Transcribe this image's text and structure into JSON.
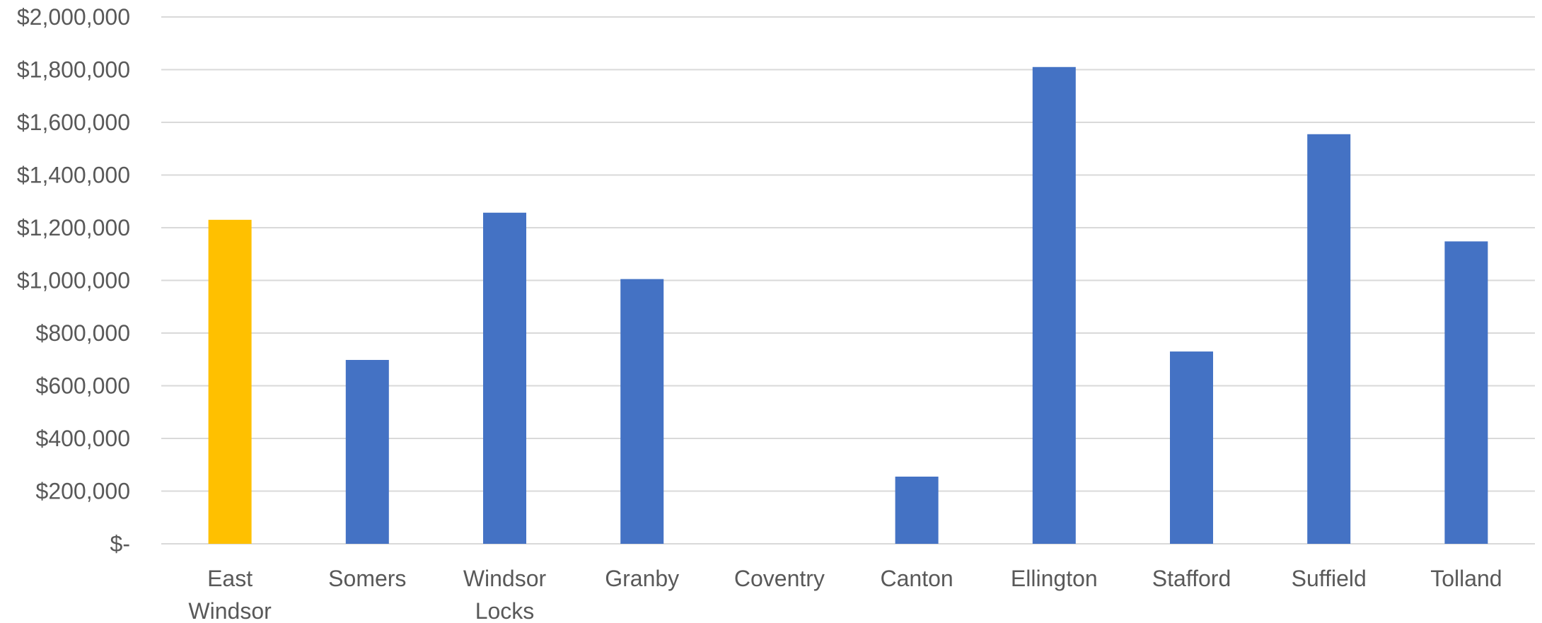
{
  "chart_data": {
    "type": "bar",
    "title": "",
    "xlabel": "",
    "ylabel": "",
    "ylim": [
      0,
      2000000
    ],
    "y_ticks": [
      {
        "value": 0,
        "label": "$-"
      },
      {
        "value": 200000,
        "label": "$200,000"
      },
      {
        "value": 400000,
        "label": "$400,000"
      },
      {
        "value": 600000,
        "label": "$600,000"
      },
      {
        "value": 800000,
        "label": "$800,000"
      },
      {
        "value": 1000000,
        "label": "$1,000,000"
      },
      {
        "value": 1200000,
        "label": "$1,200,000"
      },
      {
        "value": 1400000,
        "label": "$1,400,000"
      },
      {
        "value": 1600000,
        "label": "$1,600,000"
      },
      {
        "value": 1800000,
        "label": "$1,800,000"
      },
      {
        "value": 2000000,
        "label": "$2,000,000"
      }
    ],
    "categories": [
      [
        "East",
        "Windsor"
      ],
      [
        "Somers"
      ],
      [
        "Windsor",
        "Locks"
      ],
      [
        "Granby"
      ],
      [
        "Coventry"
      ],
      [
        "Canton"
      ],
      [
        "Ellington"
      ],
      [
        "Stafford"
      ],
      [
        "Suffield"
      ],
      [
        "Tolland"
      ]
    ],
    "values": [
      1230000,
      698000,
      1257000,
      1005000,
      0,
      255000,
      1810000,
      730000,
      1555000,
      1148000
    ],
    "bar_colors": [
      "#FFC000",
      "#4472C4",
      "#4472C4",
      "#4472C4",
      "#4472C4",
      "#4472C4",
      "#4472C4",
      "#4472C4",
      "#4472C4",
      "#4472C4"
    ],
    "grid": true,
    "legend": "none"
  }
}
